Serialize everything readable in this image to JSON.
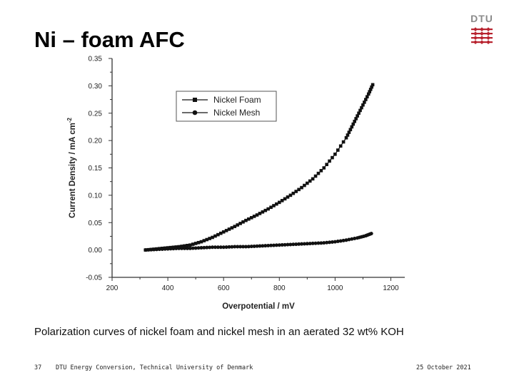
{
  "slide": {
    "title": "Ni – foam AFC",
    "caption": "Polarization curves of nickel foam and nickel mesh in an aerated 32 wt% KOH",
    "logo_text": "DTU",
    "logo_color": "#b8232f",
    "footer": {
      "page": "37",
      "org": "DTU Energy Conversion, Technical University of Denmark",
      "date": "25 October 2021"
    }
  },
  "chart_data": {
    "type": "scatter",
    "xlabel": "Overpotential / mV",
    "ylabel": "Current Density / mA cm",
    "ylabel_sup": "-2",
    "xlim": [
      200,
      1250
    ],
    "ylim": [
      -0.05,
      0.35
    ],
    "xticks": [
      200,
      400,
      600,
      800,
      1000,
      1200
    ],
    "yticks": [
      -0.05,
      0.0,
      0.05,
      0.1,
      0.15,
      0.2,
      0.25,
      0.3,
      0.35
    ],
    "xtick_labels": [
      "200",
      "400",
      "600",
      "800",
      "1000",
      "1200"
    ],
    "ytick_labels": [
      "-0.05",
      "0.00",
      "0.05",
      "0.10",
      "0.15",
      "0.20",
      "0.25",
      "0.30",
      "0.35"
    ],
    "legend_position": "top-center",
    "series": [
      {
        "name": "Nickel Foam",
        "marker": "square",
        "x": [
          320,
          360,
          400,
          440,
          480,
          520,
          560,
          600,
          640,
          680,
          720,
          760,
          800,
          840,
          880,
          920,
          960,
          1000,
          1040,
          1060,
          1080,
          1100,
          1120,
          1135
        ],
        "y": [
          0.0,
          0.002,
          0.004,
          0.006,
          0.009,
          0.015,
          0.023,
          0.033,
          0.043,
          0.054,
          0.064,
          0.075,
          0.087,
          0.1,
          0.114,
          0.13,
          0.15,
          0.175,
          0.205,
          0.225,
          0.245,
          0.265,
          0.285,
          0.302
        ]
      },
      {
        "name": "Nickel Mesh",
        "marker": "circle",
        "x": [
          320,
          360,
          400,
          440,
          480,
          520,
          560,
          600,
          640,
          680,
          720,
          760,
          800,
          840,
          880,
          920,
          960,
          1000,
          1040,
          1080,
          1110,
          1130
        ],
        "y": [
          0.0,
          0.001,
          0.002,
          0.003,
          0.003,
          0.004,
          0.005,
          0.005,
          0.006,
          0.006,
          0.007,
          0.008,
          0.009,
          0.01,
          0.011,
          0.012,
          0.013,
          0.015,
          0.018,
          0.022,
          0.026,
          0.03
        ]
      }
    ]
  }
}
